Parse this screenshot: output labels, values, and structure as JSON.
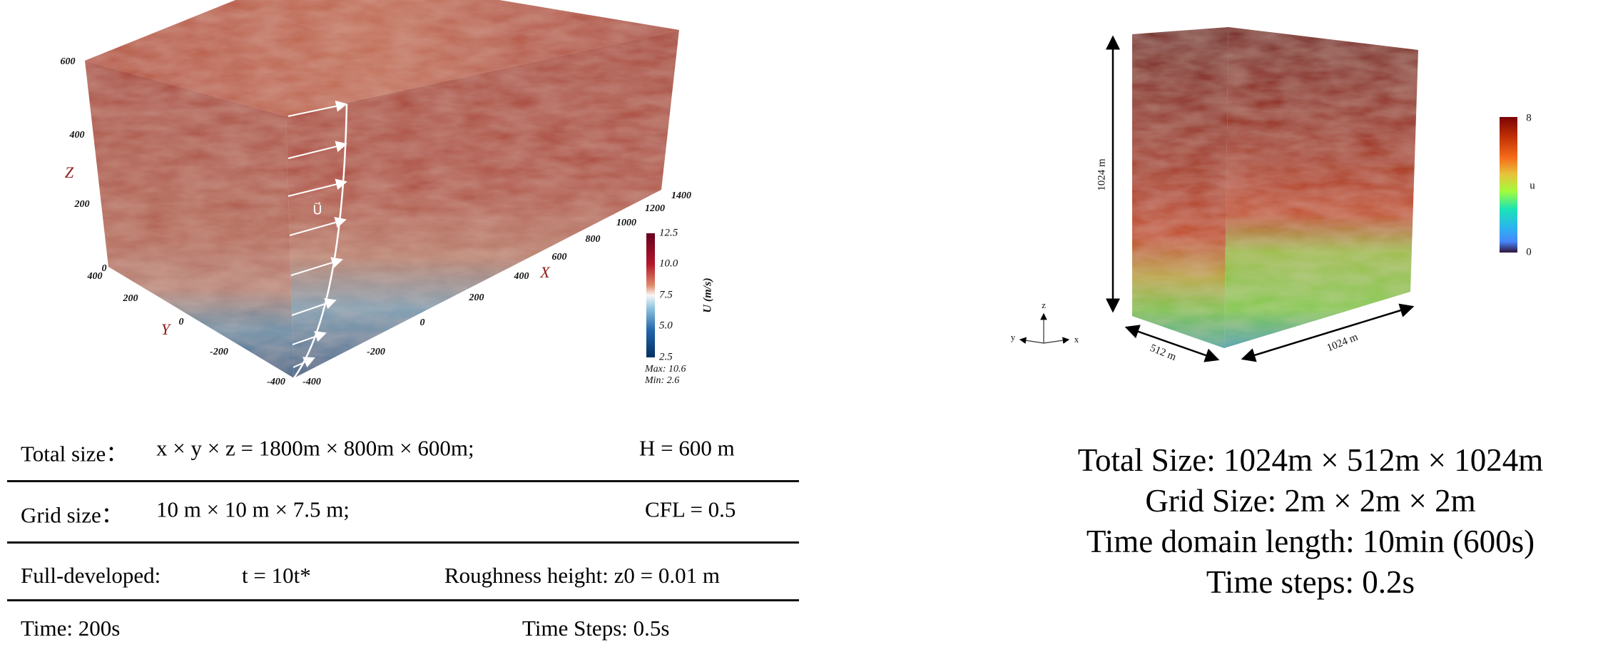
{
  "left_figure": {
    "z_axis": {
      "name": "Z",
      "ticks": [
        "600",
        "400",
        "200",
        "0"
      ]
    },
    "y_axis": {
      "name": "Y",
      "ticks": [
        "400",
        "200",
        "0",
        "-200",
        "-400"
      ]
    },
    "x_axis": {
      "name": "X",
      "ticks": [
        "-400",
        "-200",
        "0",
        "200",
        "400",
        "600",
        "800",
        "1000",
        "1200",
        "1400"
      ]
    },
    "velocity_label": "U⃗",
    "colorbar": {
      "title": "U (m/s)",
      "ticks": [
        "12.5",
        "10.0",
        "7.5",
        "5.0",
        "2.5"
      ],
      "max_text": "Max: 10.6",
      "min_text": "Min: 2.6",
      "colors": [
        "#67001f",
        "#b2182b",
        "#d6604d",
        "#f4a582",
        "#f7f7f7",
        "#92c5de",
        "#4393c3",
        "#2166ac",
        "#053061"
      ]
    }
  },
  "left_table": {
    "rows": [
      {
        "left": "Total size：",
        "left_value": "x × y × z = 1800m × 800m × 600m;",
        "right": "H = 600 m"
      },
      {
        "left": "Grid size：",
        "left_value": "10 m × 10 m × 7.5 m;",
        "right": "CFL = 0.5"
      },
      {
        "left": "Full-developed:",
        "left_value": "t = 10t*",
        "right": "Roughness height: z0 = 0.01 m"
      },
      {
        "left": "Time: 200s",
        "left_value": "",
        "right": "Time Steps: 0.5s"
      }
    ]
  },
  "right_figure": {
    "height_label": "1024 m",
    "width_label": "512 m",
    "length_label": "1024 m",
    "triad": {
      "z": "z",
      "y": "y",
      "x": "x"
    },
    "colorbar": {
      "title": "u",
      "max": "8",
      "min": "0",
      "colors": [
        "#7a0403",
        "#c23105",
        "#f66b19",
        "#fdb22f",
        "#d2e935",
        "#a2fc3c",
        "#46f884",
        "#1ae4b6",
        "#2cb3f0",
        "#4686fb",
        "#30123b"
      ]
    }
  },
  "right_text": {
    "lines": [
      "Total Size: 1024m × 512m × 1024m",
      "Grid Size: 2m × 2m × 2m",
      "Time domain length: 10min (600s)",
      "Time steps: 0.2s"
    ]
  }
}
